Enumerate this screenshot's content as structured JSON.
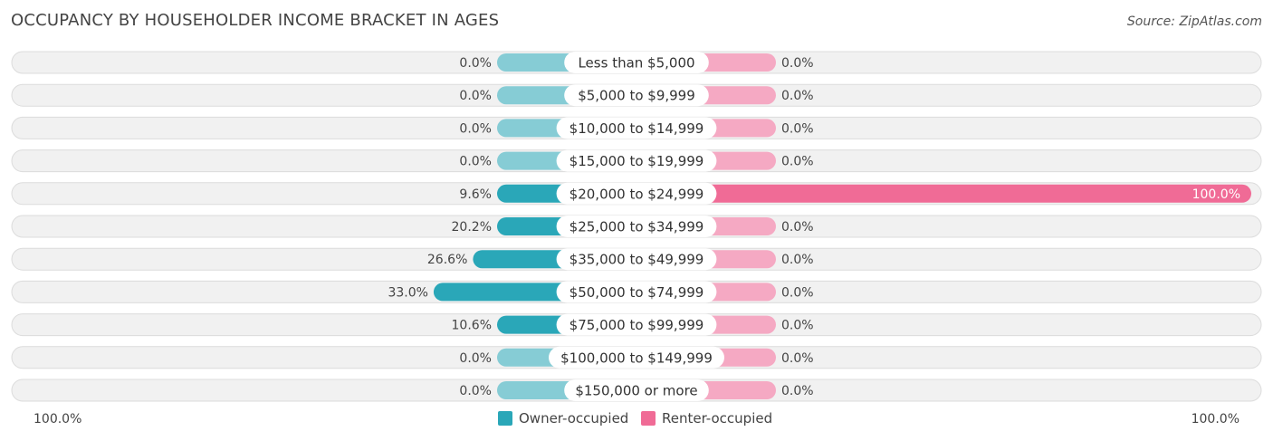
{
  "header": {
    "title": "OCCUPANCY BY HOUSEHOLDER INCOME BRACKET IN AGES",
    "source": "Source: ZipAtlas.com"
  },
  "colors": {
    "owner": "#2aa7b8",
    "owner_light": "#86ccd5",
    "renter": "#f06b96",
    "renter_light": "#f5a9c3",
    "row_bg": "#f1f1f1",
    "row_border": "#dcdcdc"
  },
  "chart_data": {
    "type": "bar",
    "orientation": "diverging-horizontal",
    "title": "OCCUPANCY BY HOUSEHOLDER INCOME BRACKET IN AGES",
    "categories": [
      "Less than $5,000",
      "$5,000 to $9,999",
      "$10,000 to $14,999",
      "$15,000 to $19,999",
      "$20,000 to $24,999",
      "$25,000 to $34,999",
      "$35,000 to $49,999",
      "$50,000 to $74,999",
      "$75,000 to $99,999",
      "$100,000 to $149,999",
      "$150,000 or more"
    ],
    "series": [
      {
        "name": "Owner-occupied",
        "values": [
          0.0,
          0.0,
          0.0,
          0.0,
          9.6,
          20.2,
          26.6,
          33.0,
          10.6,
          0.0,
          0.0
        ],
        "labels": [
          "0.0%",
          "0.0%",
          "0.0%",
          "0.0%",
          "9.6%",
          "20.2%",
          "26.6%",
          "33.0%",
          "10.6%",
          "0.0%",
          "0.0%"
        ]
      },
      {
        "name": "Renter-occupied",
        "values": [
          0.0,
          0.0,
          0.0,
          0.0,
          100.0,
          0.0,
          0.0,
          0.0,
          0.0,
          0.0,
          0.0
        ],
        "labels": [
          "0.0%",
          "0.0%",
          "0.0%",
          "0.0%",
          "100.0%",
          "0.0%",
          "0.0%",
          "0.0%",
          "0.0%",
          "0.0%",
          "0.0%"
        ]
      }
    ],
    "xlim": [
      0,
      100
    ],
    "axis_left_label": "100.0%",
    "axis_right_label": "100.0%",
    "legend": [
      "Owner-occupied",
      "Renter-occupied"
    ],
    "legend_position": "bottom-center"
  }
}
